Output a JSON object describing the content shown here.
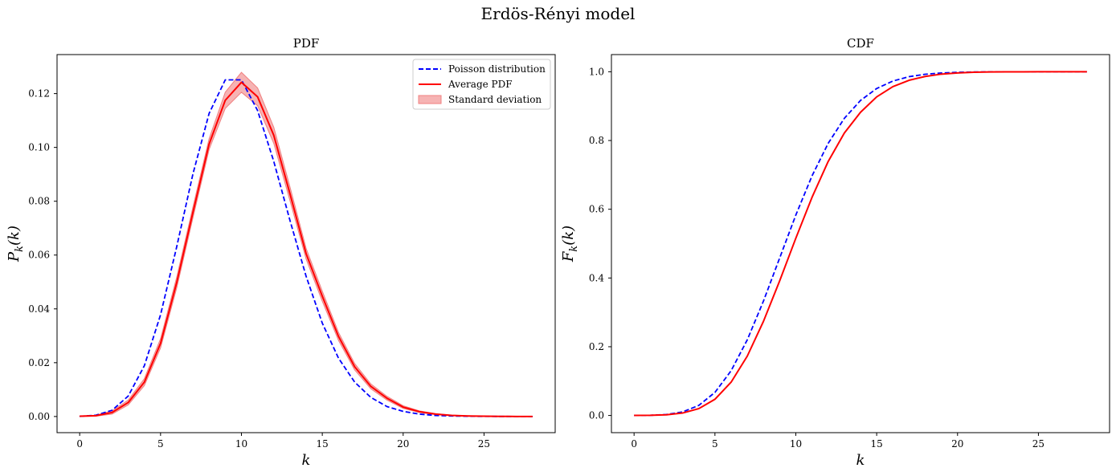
{
  "figure_title": "Erdös-Rényi model",
  "colors": {
    "poisson": "#0000ff",
    "average": "#ff0000",
    "band": "#f08080"
  },
  "chart_data": [
    {
      "type": "line",
      "title": "PDF",
      "xlabel": "k",
      "ylabel": "P_k(k)",
      "ylabel_main": "P",
      "ylabel_sub": "k",
      "ylabel_arg": "(k)",
      "xlim": [
        -1.4,
        29.4
      ],
      "ylim": [
        -0.006,
        0.1345
      ],
      "xticks": [
        0,
        5,
        10,
        15,
        20,
        25
      ],
      "xtick_labels": [
        "0",
        "5",
        "10",
        "15",
        "20",
        "25"
      ],
      "yticks": [
        0.0,
        0.02,
        0.04,
        0.06,
        0.08,
        0.1,
        0.12
      ],
      "ytick_labels": [
        "0.00",
        "0.02",
        "0.04",
        "0.06",
        "0.08",
        "0.10",
        "0.12"
      ],
      "grid": false,
      "legend_position": "upper-right",
      "legend": [
        "Poisson distribution",
        "Average PDF",
        "Standard deviation"
      ],
      "x": [
        0,
        1,
        2,
        3,
        4,
        5,
        6,
        7,
        8,
        9,
        10,
        11,
        12,
        13,
        14,
        15,
        16,
        17,
        18,
        19,
        20,
        21,
        22,
        23,
        24,
        25,
        26,
        27,
        28
      ],
      "series": [
        {
          "name": "Poisson distribution",
          "style": "dashed",
          "values": [
            5e-05,
            0.0005,
            0.0023,
            0.0076,
            0.0189,
            0.0378,
            0.0631,
            0.0901,
            0.1126,
            0.1251,
            0.1251,
            0.1137,
            0.0948,
            0.0729,
            0.0521,
            0.0347,
            0.0217,
            0.0128,
            0.0071,
            0.0037,
            0.0019,
            0.0009,
            0.0004,
            0.0002,
            0.0001,
            4e-05,
            2e-05,
            1e-05,
            0.0
          ]
        },
        {
          "name": "Average PDF",
          "style": "solid",
          "values": [
            0.0001,
            0.0003,
            0.0015,
            0.0052,
            0.0128,
            0.0272,
            0.0498,
            0.0758,
            0.1012,
            0.1175,
            0.1242,
            0.1188,
            0.1045,
            0.0828,
            0.0605,
            0.0447,
            0.0298,
            0.0185,
            0.0112,
            0.0068,
            0.0035,
            0.0018,
            0.0009,
            0.0004,
            0.0002,
            0.0001,
            5e-05,
            2e-05,
            1e-05
          ]
        },
        {
          "name": "Standard deviation",
          "style": "band",
          "lower": [
            0.0,
            0.0001,
            0.0009,
            0.0043,
            0.0115,
            0.0255,
            0.0478,
            0.0738,
            0.0992,
            0.1145,
            0.1205,
            0.1155,
            0.1015,
            0.0802,
            0.0585,
            0.0428,
            0.0283,
            0.0173,
            0.0103,
            0.0061,
            0.003,
            0.0015,
            0.0007,
            0.0003,
            0.0001,
            5e-05,
            2e-05,
            0.0,
            0.0
          ],
          "upper": [
            0.0002,
            0.0005,
            0.0021,
            0.0061,
            0.0141,
            0.0289,
            0.0518,
            0.0778,
            0.1032,
            0.1205,
            0.1279,
            0.1221,
            0.1075,
            0.0854,
            0.0625,
            0.0466,
            0.0313,
            0.0197,
            0.0121,
            0.0075,
            0.004,
            0.0021,
            0.0011,
            0.0005,
            0.0003,
            0.00015,
            0.0001,
            5e-05,
            2e-05
          ]
        }
      ]
    },
    {
      "type": "line",
      "title": "CDF",
      "xlabel": "k",
      "ylabel": "F_k(k)",
      "ylabel_main": "F",
      "ylabel_sub": "k",
      "ylabel_arg": "(k)",
      "xlim": [
        -1.4,
        29.4
      ],
      "ylim": [
        -0.05,
        1.05
      ],
      "xticks": [
        0,
        5,
        10,
        15,
        20,
        25
      ],
      "xtick_labels": [
        "0",
        "5",
        "10",
        "15",
        "20",
        "25"
      ],
      "yticks": [
        0.0,
        0.2,
        0.4,
        0.6,
        0.8,
        1.0
      ],
      "ytick_labels": [
        "0.0",
        "0.2",
        "0.4",
        "0.6",
        "0.8",
        "1.0"
      ],
      "grid": false,
      "x": [
        0,
        1,
        2,
        3,
        4,
        5,
        6,
        7,
        8,
        9,
        10,
        11,
        12,
        13,
        14,
        15,
        16,
        17,
        18,
        19,
        20,
        21,
        22,
        23,
        24,
        25,
        26,
        27,
        28
      ],
      "series": [
        {
          "name": "Poisson distribution",
          "style": "dashed",
          "values": [
            5e-05,
            0.0005,
            0.0028,
            0.0103,
            0.0293,
            0.0671,
            0.1301,
            0.2202,
            0.3328,
            0.4579,
            0.583,
            0.6968,
            0.7916,
            0.8645,
            0.9165,
            0.9513,
            0.973,
            0.9857,
            0.9928,
            0.9965,
            0.9984,
            0.9993,
            0.9997,
            0.9999,
            1.0,
            1.0,
            1.0,
            1.0,
            1.0
          ]
        },
        {
          "name": "Average PDF",
          "style": "solid",
          "values": [
            0.0001,
            0.0004,
            0.0019,
            0.0071,
            0.0199,
            0.0471,
            0.0969,
            0.1727,
            0.2739,
            0.3914,
            0.5156,
            0.6344,
            0.7389,
            0.8217,
            0.8822,
            0.9269,
            0.9567,
            0.9752,
            0.9864,
            0.9932,
            0.9967,
            0.9985,
            0.9994,
            0.9998,
            0.9999,
            1.0,
            1.0,
            1.0,
            1.0
          ]
        }
      ]
    }
  ]
}
